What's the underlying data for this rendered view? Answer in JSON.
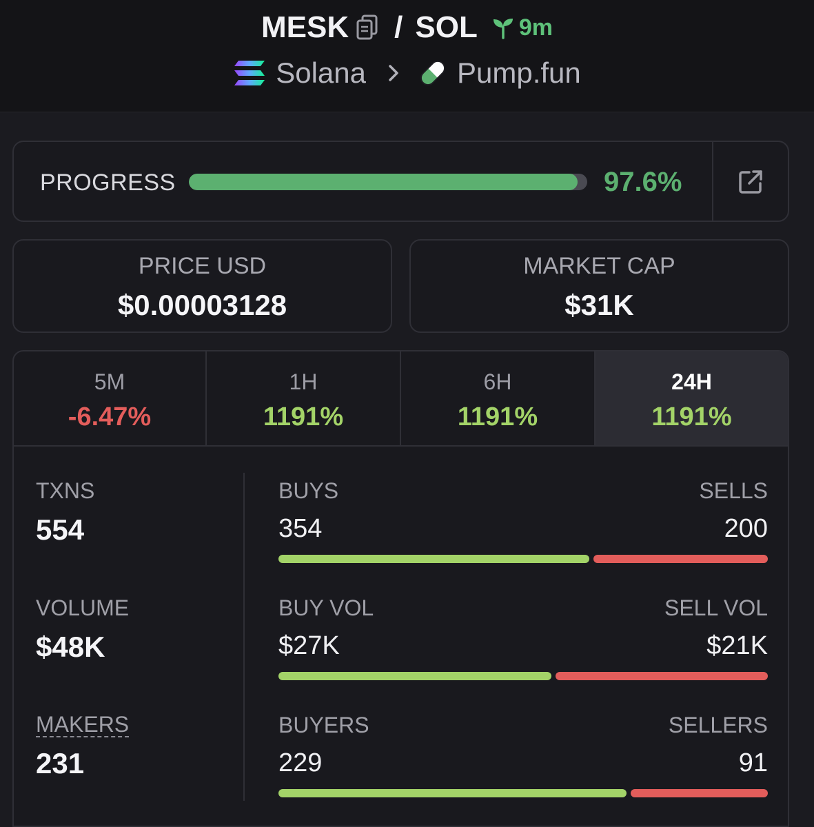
{
  "header": {
    "token_symbol": "MESK",
    "quote_symbol": "SOL",
    "separator": "/",
    "age": "9m",
    "chain": "Solana",
    "dex": "Pump.fun",
    "colors": {
      "age": "#5ec27a"
    },
    "icons": [
      "copy-icon",
      "seedling-icon",
      "solana-logo-icon",
      "chevron-right-icon",
      "pill-icon"
    ]
  },
  "progress": {
    "label": "PROGRESS",
    "value_text": "97.6%",
    "fraction": 0.976,
    "icon": "external-link-icon",
    "colors": {
      "fill": "#5cb070",
      "track": "#4a4a52"
    }
  },
  "stats": {
    "price": {
      "label": "PRICE USD",
      "value": "$0.00003128"
    },
    "market_cap": {
      "label": "MARKET CAP",
      "value": "$31K"
    }
  },
  "timeframes": [
    {
      "label": "5M",
      "change": "-6.47%",
      "direction": "negative",
      "active": false
    },
    {
      "label": "1H",
      "change": "1191%",
      "direction": "positive",
      "active": false
    },
    {
      "label": "6H",
      "change": "1191%",
      "direction": "positive",
      "active": false
    },
    {
      "label": "24H",
      "change": "1191%",
      "direction": "positive",
      "active": true
    }
  ],
  "metrics": {
    "txns": {
      "label": "TXNS",
      "value": "554"
    },
    "volume": {
      "label": "VOLUME",
      "value": "$48K"
    },
    "makers": {
      "label": "MAKERS",
      "value": "231"
    }
  },
  "splits": {
    "txns": {
      "left_label": "BUYS",
      "left_value": "354",
      "right_label": "SELLS",
      "right_value": "200",
      "left_fraction": 0.639
    },
    "volume": {
      "left_label": "BUY VOL",
      "left_value": "$27K",
      "right_label": "SELL VOL",
      "right_value": "$21K",
      "left_fraction": 0.5625
    },
    "makers": {
      "left_label": "BUYERS",
      "left_value": "229",
      "right_label": "SELLERS",
      "right_value": "91",
      "left_fraction": 0.7156
    }
  },
  "colors": {
    "positive": "#a3d368",
    "negative": "#e35d5b",
    "background": "#1b1b20"
  }
}
